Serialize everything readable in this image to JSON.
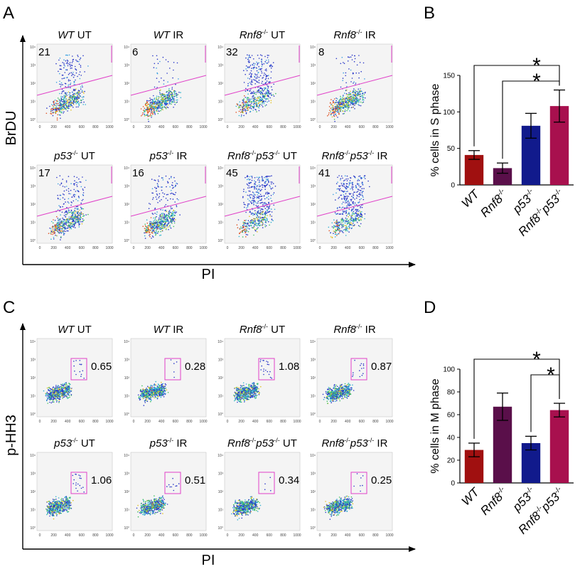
{
  "panels": {
    "A": "A",
    "B": "B",
    "C": "C",
    "D": "D"
  },
  "axis_titles": {
    "A_y": "BrDU",
    "A_x": "PI",
    "C_y": "p-HH3",
    "C_x": "PI"
  },
  "colors": {
    "WT": "#a01010",
    "Rnf8": "#5a0f4a",
    "p53": "#111a8c",
    "Rnf8p53": "#a8104e",
    "gate": "#e040c8",
    "plot_bg": "#f4f4f4"
  },
  "flow_A": {
    "x_ticks": [
      "0",
      "200",
      "400",
      "600",
      "800",
      "1000"
    ],
    "y_ticks": [
      "10°",
      "10¹",
      "10²",
      "10³",
      "10⁴"
    ],
    "plots": [
      {
        "label_italic": "WT",
        "label_sup": "",
        "label_rest": " UT",
        "value": "21",
        "upper_fraction": 0.21
      },
      {
        "label_italic": "WT",
        "label_sup": "",
        "label_rest": " IR",
        "value": "6",
        "upper_fraction": 0.06
      },
      {
        "label_italic": "Rnf8",
        "label_sup": "-/-",
        "label_rest": " UT",
        "value": "32",
        "upper_fraction": 0.32
      },
      {
        "label_italic": "Rnf8",
        "label_sup": "-/-",
        "label_rest": " IR",
        "value": "8",
        "upper_fraction": 0.08
      },
      {
        "label_italic": "p53",
        "label_sup": "-/-",
        "label_rest": " UT",
        "value": "17",
        "upper_fraction": 0.17
      },
      {
        "label_italic": "p53",
        "label_sup": "-/-",
        "label_rest": " IR",
        "value": "16",
        "upper_fraction": 0.16
      },
      {
        "label_italic": "Rnf8",
        "label_sup": "-/-",
        "label_italic2": "p53",
        "label_sup2": "-/-",
        "label_rest": " UT",
        "value": "45",
        "upper_fraction": 0.45
      },
      {
        "label_italic": "Rnf8",
        "label_sup": "-/-",
        "label_italic2": "p53",
        "label_sup2": "-/-",
        "label_rest": " IR",
        "value": "41",
        "upper_fraction": 0.41
      }
    ]
  },
  "flow_C": {
    "x_ticks": [
      "0",
      "200",
      "400",
      "600",
      "800",
      "1000"
    ],
    "y_ticks": [
      "10°",
      "10¹",
      "10²",
      "10³",
      "10⁴"
    ],
    "plots": [
      {
        "label_italic": "WT",
        "label_sup": "",
        "label_rest": " UT",
        "value": "0.65",
        "gate_fraction": 0.0065
      },
      {
        "label_italic": "WT",
        "label_sup": "",
        "label_rest": " IR",
        "value": "0.28",
        "gate_fraction": 0.0028
      },
      {
        "label_italic": "Rnf8",
        "label_sup": "-/-",
        "label_rest": " UT",
        "value": "1.08",
        "gate_fraction": 0.0108
      },
      {
        "label_italic": "Rnf8",
        "label_sup": "-/-",
        "label_rest": " IR",
        "value": "0.87",
        "gate_fraction": 0.0087
      },
      {
        "label_italic": "p53",
        "label_sup": "-/-",
        "label_rest": " UT",
        "value": "1.06",
        "gate_fraction": 0.0106
      },
      {
        "label_italic": "p53",
        "label_sup": "-/-",
        "label_rest": " IR",
        "value": "0.51",
        "gate_fraction": 0.0051
      },
      {
        "label_italic": "Rnf8",
        "label_sup": "-/-",
        "label_italic2": "p53",
        "label_sup2": "-/-",
        "label_rest": " UT",
        "value": "0.34",
        "gate_fraction": 0.0034
      },
      {
        "label_italic": "Rnf8",
        "label_sup": "-/-",
        "label_italic2": "p53",
        "label_sup2": "-/-",
        "label_rest": " IR",
        "value": "0.25",
        "gate_fraction": 0.0025
      }
    ]
  },
  "chart_data": [
    {
      "type": "bar",
      "panel": "B",
      "ylabel": "% cells in S phase",
      "ylim": [
        0,
        150
      ],
      "yticks": [
        0,
        50,
        100,
        150
      ],
      "categories": [
        {
          "italic": "WT",
          "sup": ""
        },
        {
          "italic": "Rnf8",
          "sup": "-/-"
        },
        {
          "italic": "p53",
          "sup": "-/-"
        },
        {
          "italic": "Rnf8",
          "sup": "-/-",
          "italic2": "p53",
          "sup2": "-/-"
        }
      ],
      "values": [
        41,
        23,
        81,
        108
      ],
      "errors": [
        6,
        7,
        17,
        22
      ],
      "significance": [
        {
          "from": 0,
          "to": 3,
          "label": "*"
        },
        {
          "from": 1,
          "to": 3,
          "label": "*"
        }
      ]
    },
    {
      "type": "bar",
      "panel": "D",
      "ylabel": "% cells in M phase",
      "ylim": [
        0,
        100
      ],
      "yticks": [
        0,
        20,
        40,
        60,
        80,
        100
      ],
      "categories": [
        {
          "italic": "WT",
          "sup": ""
        },
        {
          "italic": "Rnf8",
          "sup": "-/-"
        },
        {
          "italic": "p53",
          "sup": "-/-"
        },
        {
          "italic": "Rnf8",
          "sup": "-/-",
          "italic2": "p53",
          "sup2": "-/-"
        }
      ],
      "values": [
        29,
        67,
        35,
        64
      ],
      "errors": [
        6,
        12,
        6,
        6
      ],
      "significance": [
        {
          "from": 0,
          "to": 3,
          "label": "*"
        },
        {
          "from": 2,
          "to": 3,
          "label": "*"
        }
      ]
    }
  ]
}
